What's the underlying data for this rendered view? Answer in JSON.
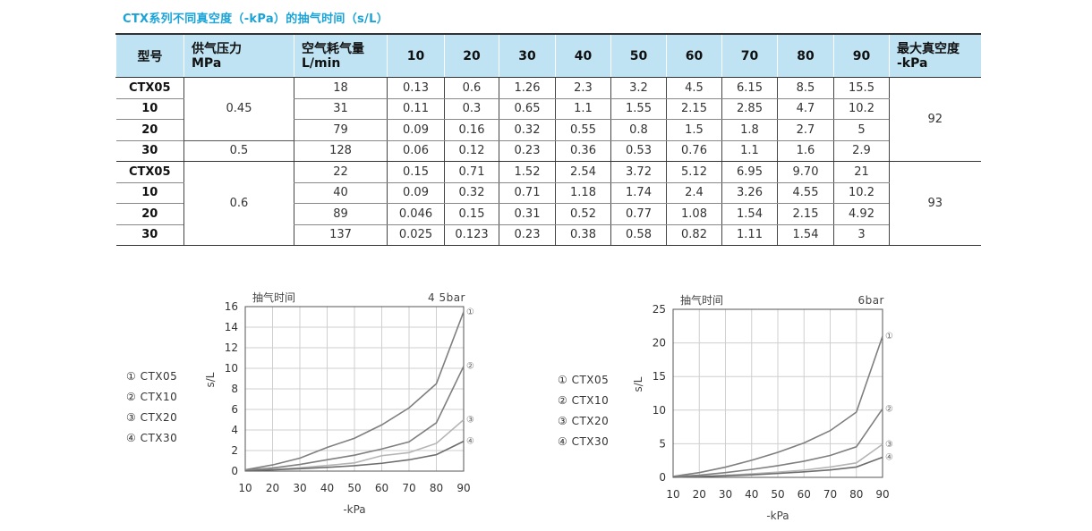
{
  "title": "CTX系列不同真空度（-kPa）的抽气时间（s/L）",
  "table": {
    "headers": [
      "型号",
      "供气压力\nMPa",
      "空气耗气量\nL/min",
      "10",
      "20",
      "30",
      "40",
      "50",
      "60",
      "70",
      "80",
      "90",
      "最大真空度\n-kPa"
    ],
    "groups": [
      {
        "rows": [
          {
            "model": "CTX05",
            "flow": "18",
            "times": [
              "0.13",
              "0.6",
              "1.26",
              "2.3",
              "3.2",
              "4.5",
              "6.15",
              "8.5",
              "15.5"
            ]
          },
          {
            "model": "10",
            "flow": "31",
            "times": [
              "0.11",
              "0.3",
              "0.65",
              "1.1",
              "1.55",
              "2.15",
              "2.85",
              "4.7",
              "10.2"
            ]
          },
          {
            "model": "20",
            "flow": "79",
            "times": [
              "0.09",
              "0.16",
              "0.32",
              "0.55",
              "0.8",
              "1.5",
              "1.8",
              "2.7",
              "5"
            ]
          },
          {
            "model": "30",
            "flow": "128",
            "times": [
              "0.06",
              "0.12",
              "0.23",
              "0.36",
              "0.53",
              "0.76",
              "1.1",
              "1.6",
              "2.9"
            ]
          }
        ],
        "pressures": [
          {
            "value": "0.45",
            "rowspan": 3
          },
          {
            "value": "0.5",
            "rowspan": 1
          }
        ],
        "max_vacuum": "92"
      },
      {
        "rows": [
          {
            "model": "CTX05",
            "flow": "22",
            "times": [
              "0.15",
              "0.71",
              "1.52",
              "2.54",
              "3.72",
              "5.12",
              "6.95",
              "9.70",
              "21"
            ]
          },
          {
            "model": "10",
            "flow": "40",
            "times": [
              "0.09",
              "0.32",
              "0.71",
              "1.18",
              "1.74",
              "2.4",
              "3.26",
              "4.55",
              "10.2"
            ]
          },
          {
            "model": "20",
            "flow": "89",
            "times": [
              "0.046",
              "0.15",
              "0.31",
              "0.52",
              "0.77",
              "1.08",
              "1.54",
              "2.15",
              "4.92"
            ]
          },
          {
            "model": "30",
            "flow": "137",
            "times": [
              "0.025",
              "0.123",
              "0.23",
              "0.38",
              "0.58",
              "0.82",
              "1.11",
              "1.54",
              "3"
            ]
          }
        ],
        "pressures": [
          {
            "value": "0.6",
            "rowspan": 4
          }
        ],
        "max_vacuum": "93"
      }
    ]
  },
  "legend": [
    "① CTX05",
    "② CTX10",
    "③ CTX20",
    "④ CTX30"
  ],
  "chart_data": [
    {
      "type": "line",
      "corner_label": "抽气时间",
      "subtitle": "4 5bar",
      "xlabel": "-kPa",
      "ylabel": "s/L",
      "x": [
        10,
        20,
        30,
        40,
        50,
        60,
        70,
        80,
        90
      ],
      "xticks": [
        10,
        20,
        30,
        40,
        50,
        60,
        70,
        80,
        90
      ],
      "yticks": [
        0,
        2,
        4,
        6,
        8,
        10,
        12,
        14,
        16
      ],
      "ylim": [
        0,
        16
      ],
      "grid": true,
      "series": [
        {
          "name": "①",
          "values": [
            0.13,
            0.6,
            1.26,
            2.3,
            3.2,
            4.5,
            6.15,
            8.5,
            15.5
          ],
          "color": "#7f7f7f"
        },
        {
          "name": "②",
          "values": [
            0.11,
            0.3,
            0.65,
            1.1,
            1.55,
            2.15,
            2.85,
            4.7,
            10.2
          ],
          "color": "#7f7f7f"
        },
        {
          "name": "③",
          "values": [
            0.09,
            0.16,
            0.32,
            0.55,
            0.8,
            1.5,
            1.8,
            2.7,
            5
          ],
          "color": "#b5b5b5"
        },
        {
          "name": "④",
          "values": [
            0.06,
            0.12,
            0.23,
            0.36,
            0.53,
            0.76,
            1.1,
            1.6,
            2.9
          ],
          "color": "#6d6d6d"
        }
      ]
    },
    {
      "type": "line",
      "corner_label": "抽气时间",
      "subtitle": "6bar",
      "xlabel": "-kPa",
      "ylabel": "s/L",
      "x": [
        10,
        20,
        30,
        40,
        50,
        60,
        70,
        80,
        90
      ],
      "xticks": [
        10,
        20,
        30,
        40,
        50,
        60,
        70,
        80,
        90
      ],
      "yticks": [
        0,
        5,
        10,
        15,
        20,
        25
      ],
      "ylim": [
        0,
        25
      ],
      "grid": true,
      "series": [
        {
          "name": "①",
          "values": [
            0.15,
            0.71,
            1.52,
            2.54,
            3.72,
            5.12,
            6.95,
            9.7,
            21
          ],
          "color": "#7f7f7f"
        },
        {
          "name": "②",
          "values": [
            0.09,
            0.32,
            0.71,
            1.18,
            1.74,
            2.4,
            3.26,
            4.55,
            10.2
          ],
          "color": "#7f7f7f"
        },
        {
          "name": "③",
          "values": [
            0.046,
            0.15,
            0.31,
            0.52,
            0.77,
            1.08,
            1.54,
            2.15,
            4.92
          ],
          "color": "#b5b5b5"
        },
        {
          "name": "④",
          "values": [
            0.025,
            0.123,
            0.23,
            0.38,
            0.58,
            0.82,
            1.11,
            1.54,
            3
          ],
          "color": "#6d6d6d"
        }
      ]
    }
  ]
}
